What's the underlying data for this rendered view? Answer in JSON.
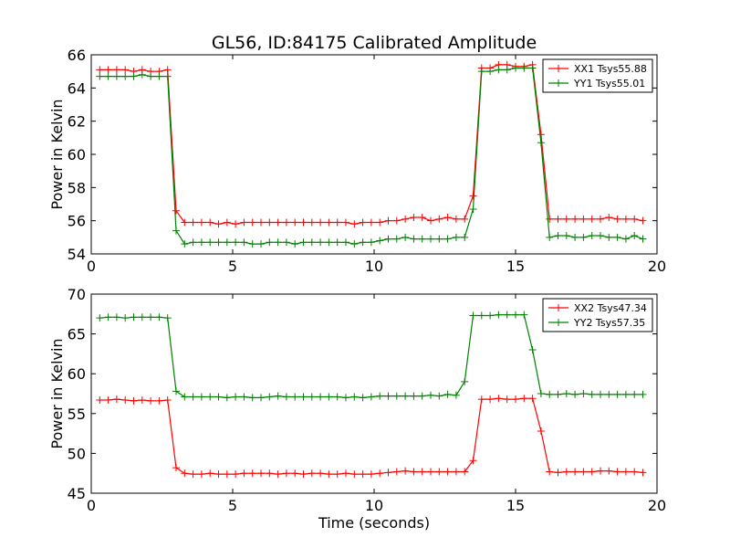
{
  "chart_data": {
    "type": "line",
    "title": "GL56, ID:84175 Calibrated Amplitude",
    "charts": [
      {
        "id": "top",
        "ylabel": "Power in Kelvin",
        "xlabel": "",
        "xlim": [
          0,
          20
        ],
        "ylim": [
          54,
          66
        ],
        "xticks": [
          0,
          5,
          10,
          15,
          20
        ],
        "yticks": [
          54,
          56,
          58,
          60,
          62,
          64,
          66
        ],
        "legend_position": "top-right",
        "grid": false,
        "series": [
          {
            "name": "XX1 Tsys55.88",
            "color": "#ff0000",
            "x": [
              0.3,
              0.6,
              0.9,
              1.2,
              1.5,
              1.8,
              2.1,
              2.4,
              2.7,
              3.0,
              3.3,
              3.6,
              3.9,
              4.2,
              4.5,
              4.8,
              5.1,
              5.4,
              5.7,
              6.0,
              6.3,
              6.6,
              6.9,
              7.2,
              7.5,
              7.8,
              8.1,
              8.4,
              8.7,
              9.0,
              9.3,
              9.6,
              9.9,
              10.2,
              10.5,
              10.8,
              11.1,
              11.4,
              11.7,
              12.0,
              12.3,
              12.6,
              12.9,
              13.2,
              13.5,
              13.8,
              14.1,
              14.4,
              14.7,
              15.0,
              15.3,
              15.6,
              15.9,
              16.2,
              16.5,
              16.8,
              17.1,
              17.4,
              17.7,
              18.0,
              18.3,
              18.6,
              18.9,
              19.2,
              19.5
            ],
            "y": [
              65.1,
              65.1,
              65.1,
              65.1,
              65.0,
              65.1,
              65.0,
              65.0,
              65.1,
              56.6,
              55.9,
              55.9,
              55.9,
              55.9,
              55.8,
              55.9,
              55.8,
              55.9,
              55.9,
              55.9,
              55.9,
              55.9,
              55.9,
              55.9,
              55.9,
              55.9,
              55.9,
              55.9,
              55.9,
              55.9,
              55.8,
              55.9,
              55.9,
              55.9,
              56.0,
              56.0,
              56.1,
              56.2,
              56.2,
              56.0,
              56.1,
              56.2,
              56.1,
              56.1,
              57.5,
              65.2,
              65.2,
              65.4,
              65.4,
              65.3,
              65.3,
              65.4,
              61.2,
              56.1,
              56.1,
              56.1,
              56.1,
              56.1,
              56.1,
              56.1,
              56.2,
              56.1,
              56.1,
              56.1,
              56.0
            ]
          },
          {
            "name": "YY1 Tsys55.01",
            "color": "#008000",
            "x": [
              0.3,
              0.6,
              0.9,
              1.2,
              1.5,
              1.8,
              2.1,
              2.4,
              2.7,
              3.0,
              3.3,
              3.6,
              3.9,
              4.2,
              4.5,
              4.8,
              5.1,
              5.4,
              5.7,
              6.0,
              6.3,
              6.6,
              6.9,
              7.2,
              7.5,
              7.8,
              8.1,
              8.4,
              8.7,
              9.0,
              9.3,
              9.6,
              9.9,
              10.2,
              10.5,
              10.8,
              11.1,
              11.4,
              11.7,
              12.0,
              12.3,
              12.6,
              12.9,
              13.2,
              13.5,
              13.8,
              14.1,
              14.4,
              14.7,
              15.0,
              15.3,
              15.6,
              15.9,
              16.2,
              16.5,
              16.8,
              17.1,
              17.4,
              17.7,
              18.0,
              18.3,
              18.6,
              18.9,
              19.2,
              19.5
            ],
            "y": [
              64.7,
              64.7,
              64.7,
              64.7,
              64.7,
              64.8,
              64.7,
              64.7,
              64.7,
              55.4,
              54.6,
              54.7,
              54.7,
              54.7,
              54.7,
              54.7,
              54.7,
              54.7,
              54.6,
              54.6,
              54.7,
              54.7,
              54.7,
              54.6,
              54.7,
              54.7,
              54.7,
              54.7,
              54.7,
              54.7,
              54.6,
              54.7,
              54.7,
              54.8,
              54.9,
              54.9,
              55.0,
              54.9,
              54.9,
              54.9,
              54.9,
              54.9,
              55.0,
              55.0,
              56.7,
              65.0,
              65.0,
              65.1,
              65.1,
              65.2,
              65.2,
              65.2,
              60.7,
              55.0,
              55.1,
              55.1,
              55.0,
              55.0,
              55.1,
              55.1,
              55.0,
              55.0,
              54.9,
              55.1,
              54.9
            ]
          }
        ]
      },
      {
        "id": "bottom",
        "ylabel": "Power in Kelvin",
        "xlabel": "Time (seconds)",
        "xlim": [
          0,
          20
        ],
        "ylim": [
          45,
          70
        ],
        "xticks": [
          0,
          5,
          10,
          15,
          20
        ],
        "yticks": [
          45,
          50,
          55,
          60,
          65,
          70
        ],
        "legend_position": "top-right",
        "grid": false,
        "series": [
          {
            "name": "XX2 Tsys47.34",
            "color": "#ff0000",
            "x": [
              0.3,
              0.6,
              0.9,
              1.2,
              1.5,
              1.8,
              2.1,
              2.4,
              2.7,
              3.0,
              3.3,
              3.6,
              3.9,
              4.2,
              4.5,
              4.8,
              5.1,
              5.4,
              5.7,
              6.0,
              6.3,
              6.6,
              6.9,
              7.2,
              7.5,
              7.8,
              8.1,
              8.4,
              8.7,
              9.0,
              9.3,
              9.6,
              9.9,
              10.2,
              10.5,
              10.8,
              11.1,
              11.4,
              11.7,
              12.0,
              12.3,
              12.6,
              12.9,
              13.2,
              13.5,
              13.8,
              14.1,
              14.4,
              14.7,
              15.0,
              15.3,
              15.6,
              15.9,
              16.2,
              16.5,
              16.8,
              17.1,
              17.4,
              17.7,
              18.0,
              18.3,
              18.6,
              18.9,
              19.2,
              19.5
            ],
            "y": [
              56.7,
              56.7,
              56.8,
              56.7,
              56.6,
              56.7,
              56.6,
              56.6,
              56.7,
              48.2,
              47.5,
              47.4,
              47.4,
              47.5,
              47.4,
              47.4,
              47.4,
              47.5,
              47.5,
              47.5,
              47.5,
              47.4,
              47.5,
              47.5,
              47.4,
              47.5,
              47.5,
              47.4,
              47.4,
              47.5,
              47.4,
              47.4,
              47.4,
              47.5,
              47.6,
              47.7,
              47.8,
              47.7,
              47.7,
              47.7,
              47.7,
              47.7,
              47.7,
              47.7,
              49.1,
              56.8,
              56.8,
              56.9,
              56.8,
              56.8,
              56.9,
              56.9,
              52.8,
              47.7,
              47.6,
              47.7,
              47.7,
              47.7,
              47.7,
              47.8,
              47.8,
              47.7,
              47.7,
              47.7,
              47.6
            ]
          },
          {
            "name": "YY2 Tsys57.35",
            "color": "#008000",
            "x": [
              0.3,
              0.6,
              0.9,
              1.2,
              1.5,
              1.8,
              2.1,
              2.4,
              2.7,
              3.0,
              3.3,
              3.6,
              3.9,
              4.2,
              4.5,
              4.8,
              5.1,
              5.4,
              5.7,
              6.0,
              6.3,
              6.6,
              6.9,
              7.2,
              7.5,
              7.8,
              8.1,
              8.4,
              8.7,
              9.0,
              9.3,
              9.6,
              9.9,
              10.2,
              10.5,
              10.8,
              11.1,
              11.4,
              11.7,
              12.0,
              12.3,
              12.6,
              12.9,
              13.2,
              13.5,
              13.8,
              14.1,
              14.4,
              14.7,
              15.0,
              15.3,
              15.6,
              15.9,
              16.2,
              16.5,
              16.8,
              17.1,
              17.4,
              17.7,
              18.0,
              18.3,
              18.6,
              18.9,
              19.2,
              19.5
            ],
            "y": [
              67.0,
              67.1,
              67.1,
              67.0,
              67.1,
              67.1,
              67.1,
              67.1,
              67.0,
              57.8,
              57.1,
              57.1,
              57.1,
              57.1,
              57.1,
              57.0,
              57.1,
              57.1,
              57.0,
              57.0,
              57.1,
              57.2,
              57.1,
              57.1,
              57.1,
              57.1,
              57.1,
              57.1,
              57.1,
              57.0,
              57.1,
              57.0,
              57.1,
              57.2,
              57.2,
              57.2,
              57.2,
              57.2,
              57.2,
              57.3,
              57.2,
              57.4,
              57.3,
              59.0,
              67.3,
              67.3,
              67.3,
              67.4,
              67.4,
              67.4,
              67.4,
              63.0,
              57.5,
              57.4,
              57.4,
              57.5,
              57.4,
              57.5,
              57.4,
              57.4,
              57.4,
              57.4,
              57.4,
              57.4,
              57.4
            ]
          }
        ]
      }
    ]
  }
}
